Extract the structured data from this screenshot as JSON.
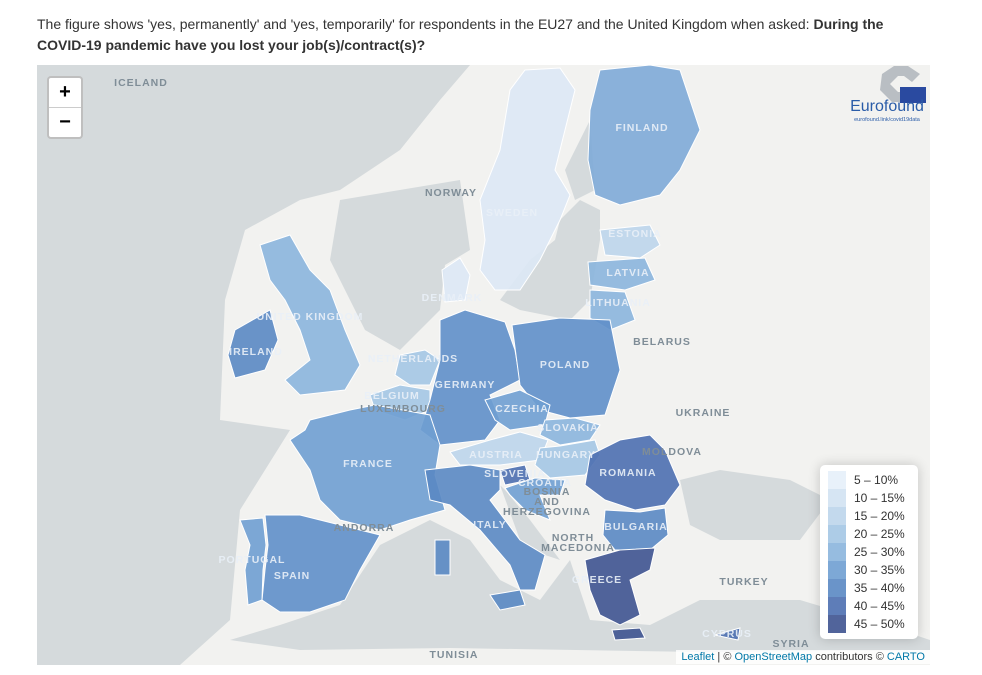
{
  "caption": {
    "text": "The figure shows 'yes, permanently' and 'yes, temporarily' for respondents in the EU27 and the United Kingdom when asked: ",
    "question": "During the COVID-19 pandemic have you lost your job(s)/contract(s)?"
  },
  "zoom": {
    "in": "+",
    "out": "−"
  },
  "logo": {
    "name": "Eurofound",
    "url": "eurofound.link/covid19data"
  },
  "countries": [
    {
      "name": "FINLAND",
      "color": "#7eaad7"
    },
    {
      "name": "SWEDEN",
      "color": "#dde8f5"
    },
    {
      "name": "ESTONIA",
      "color": "#bcd5eb"
    },
    {
      "name": "LATVIA",
      "color": "#8bb5dd"
    },
    {
      "name": "LITHUANIA",
      "color": "#8bb5dd"
    },
    {
      "name": "DENMARK",
      "color": "#dde8f5"
    },
    {
      "name": "UNITED KINGDOM",
      "color": "#8bb5dd"
    },
    {
      "name": "IRELAND",
      "color": "#5a88c3"
    },
    {
      "name": "NETHERLANDS",
      "color": "#a4c6e4"
    },
    {
      "name": "BELGIUM",
      "color": "#a4c6e4"
    },
    {
      "name": "GERMANY",
      "color": "#5f8fc9"
    },
    {
      "name": "POLAND",
      "color": "#5f8fc9"
    },
    {
      "name": "CZECHIA",
      "color": "#6f9fd1"
    },
    {
      "name": "SLOVAKIA",
      "color": "#8bb5dd"
    },
    {
      "name": "AUSTRIA",
      "color": "#bcd5eb"
    },
    {
      "name": "HUNGARY",
      "color": "#a4c6e4"
    },
    {
      "name": "ROMANIA",
      "color": "#4d6fb0"
    },
    {
      "name": "BULGARIA",
      "color": "#5a88c3"
    },
    {
      "name": "GREECE",
      "color": "#3e5390"
    },
    {
      "name": "SLOVENIA",
      "color": "#4d6fb0"
    },
    {
      "name": "CROATIA",
      "color": "#6f9fd1"
    },
    {
      "name": "CYPRUS",
      "color": "#4d6fb0"
    },
    {
      "name": "FRANCE",
      "color": "#6f9fd1"
    },
    {
      "name": "SPAIN",
      "color": "#5f8fc9"
    },
    {
      "name": "PORTUGAL",
      "color": "#6f9fd1"
    },
    {
      "name": "ITALY",
      "color": "#5a88c3"
    }
  ],
  "other_labels": [
    "ICELAND",
    "NORWAY",
    "BELARUS",
    "UKRAINE",
    "MOLDOVA",
    "TURKEY",
    "SYRIA",
    "TUNISIA",
    "BOSNIA",
    "AND",
    "HERZEGOVINA",
    "NORTH",
    "MACEDONIA",
    "ANDORRA",
    "LUXEMBOURG"
  ],
  "legend": {
    "items": [
      {
        "label": "5 – 10%",
        "color": "#e6eff9"
      },
      {
        "label": "10 – 15%",
        "color": "#d2e2f2"
      },
      {
        "label": "15 – 20%",
        "color": "#bcd5eb"
      },
      {
        "label": "20 – 25%",
        "color": "#a4c6e4"
      },
      {
        "label": "25 – 30%",
        "color": "#8bb5dd"
      },
      {
        "label": "30 – 35%",
        "color": "#6f9fd1"
      },
      {
        "label": "35 – 40%",
        "color": "#5a88c3"
      },
      {
        "label": "40 – 45%",
        "color": "#4d6fb0"
      },
      {
        "label": "45 – 50%",
        "color": "#3e5390"
      }
    ]
  },
  "attribution": {
    "leaflet": "Leaflet",
    "sep": " | © ",
    "osm": "OpenStreetMap",
    "mid": " contributors © ",
    "carto": "CARTO"
  }
}
